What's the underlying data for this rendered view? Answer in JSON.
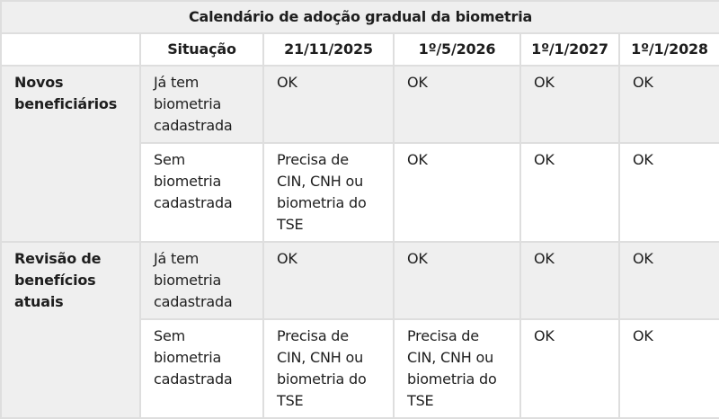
{
  "title": "Calendário de adoção gradual da biometria",
  "headers": [
    "",
    "Situação",
    "21/11/2025",
    "1º/5/2026",
    "1º/1/2027",
    "1º/1/2028"
  ],
  "groups": [
    {
      "label": "Novos beneficiários",
      "rows": [
        {
          "situacao": "Já tem biometria cadastrada",
          "cells": [
            "OK",
            "OK",
            "OK",
            "OK"
          ]
        },
        {
          "situacao": "Sem biometria cadastrada",
          "cells": [
            "Precisa de CIN, CNH ou biometria do TSE",
            "OK",
            "OK",
            "OK"
          ]
        }
      ]
    },
    {
      "label": "Revisão de benefícios atuais",
      "rows": [
        {
          "situacao": "Já tem biometria cadastrada",
          "cells": [
            "OK",
            "OK",
            "OK",
            "OK"
          ]
        },
        {
          "situacao": "Sem biometria cadastrada",
          "cells": [
            "Precisa de CIN, CNH ou biometria do TSE",
            "Precisa de CIN, CNH ou biometria do TSE",
            "OK",
            "OK"
          ]
        }
      ]
    }
  ],
  "colors": {
    "header_bg": "#efefef",
    "border": "#dedede",
    "text": "#1e1e1e"
  }
}
